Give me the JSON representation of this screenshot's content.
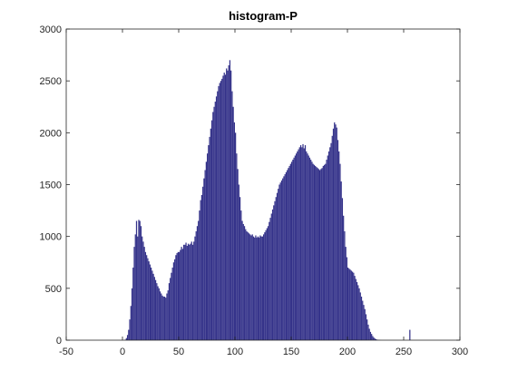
{
  "chart_data": {
    "type": "histogram",
    "title": "histogram-P",
    "bins": [
      0,
      1,
      2,
      3,
      4,
      5,
      6,
      7,
      8,
      9,
      10,
      11,
      12,
      13,
      14,
      15,
      16,
      17,
      18,
      19,
      20,
      21,
      22,
      23,
      24,
      25,
      26,
      27,
      28,
      29,
      30,
      31,
      32,
      33,
      34,
      35,
      36,
      37,
      38,
      39,
      40,
      41,
      42,
      43,
      44,
      45,
      46,
      47,
      48,
      49,
      50,
      51,
      52,
      53,
      54,
      55,
      56,
      57,
      58,
      59,
      60,
      61,
      62,
      63,
      64,
      65,
      66,
      67,
      68,
      69,
      70,
      71,
      72,
      73,
      74,
      75,
      76,
      77,
      78,
      79,
      80,
      81,
      82,
      83,
      84,
      85,
      86,
      87,
      88,
      89,
      90,
      91,
      92,
      93,
      94,
      95,
      96,
      97,
      98,
      99,
      100,
      101,
      102,
      103,
      104,
      105,
      106,
      107,
      108,
      109,
      110,
      111,
      112,
      113,
      114,
      115,
      116,
      117,
      118,
      119,
      120,
      121,
      122,
      123,
      124,
      125,
      126,
      127,
      128,
      129,
      130,
      131,
      132,
      133,
      134,
      135,
      136,
      137,
      138,
      139,
      140,
      141,
      142,
      143,
      144,
      145,
      146,
      147,
      148,
      149,
      150,
      151,
      152,
      153,
      154,
      155,
      156,
      157,
      158,
      159,
      160,
      161,
      162,
      163,
      164,
      165,
      166,
      167,
      168,
      169,
      170,
      171,
      172,
      173,
      174,
      175,
      176,
      177,
      178,
      179,
      180,
      181,
      182,
      183,
      184,
      185,
      186,
      187,
      188,
      189,
      190,
      191,
      192,
      193,
      194,
      195,
      196,
      197,
      198,
      199,
      200,
      201,
      202,
      203,
      204,
      205,
      206,
      207,
      208,
      209,
      210,
      211,
      212,
      213,
      214,
      215,
      216,
      217,
      218,
      219,
      220,
      221,
      222,
      223,
      224,
      225,
      226,
      227,
      228,
      229,
      230,
      231,
      232,
      233,
      234,
      235,
      236,
      237,
      238,
      239,
      240,
      241,
      242,
      243,
      244,
      245,
      246,
      247,
      248,
      249,
      250,
      251,
      252,
      253,
      254,
      255,
      256
    ],
    "values": [
      0,
      0,
      5,
      20,
      50,
      100,
      200,
      330,
      500,
      700,
      900,
      1020,
      1150,
      1000,
      1160,
      1150,
      1100,
      1000,
      950,
      900,
      850,
      820,
      790,
      760,
      730,
      700,
      670,
      640,
      610,
      580,
      550,
      520,
      500,
      470,
      450,
      430,
      420,
      420,
      410,
      450,
      480,
      550,
      600,
      650,
      700,
      750,
      780,
      820,
      840,
      850,
      850,
      870,
      900,
      880,
      920,
      920,
      940,
      910,
      930,
      920,
      930,
      950,
      920,
      950,
      1000,
      1050,
      1100,
      1150,
      1250,
      1350,
      1400,
      1480,
      1560,
      1640,
      1720,
      1800,
      1880,
      1960,
      2040,
      2120,
      2200,
      2250,
      2300,
      2350,
      2400,
      2450,
      2480,
      2500,
      2520,
      2550,
      2580,
      2560,
      2620,
      2600,
      2650,
      2700,
      2600,
      2400,
      2250,
      2100,
      2000,
      1800,
      1650,
      1500,
      1380,
      1250,
      1150,
      1120,
      1100,
      1070,
      1050,
      1040,
      1030,
      1020,
      1010,
      1020,
      1000,
      990,
      1010,
      990,
      1000,
      990,
      1010,
      1000,
      1000,
      1020,
      1040,
      1060,
      1080,
      1100,
      1140,
      1180,
      1220,
      1260,
      1300,
      1340,
      1380,
      1420,
      1460,
      1500,
      1520,
      1540,
      1560,
      1580,
      1600,
      1620,
      1640,
      1660,
      1680,
      1700,
      1720,
      1740,
      1760,
      1780,
      1800,
      1820,
      1840,
      1860,
      1880,
      1860,
      1890,
      1850,
      1880,
      1820,
      1800,
      1780,
      1760,
      1740,
      1720,
      1700,
      1690,
      1680,
      1670,
      1660,
      1650,
      1640,
      1650,
      1660,
      1680,
      1690,
      1700,
      1740,
      1780,
      1820,
      1860,
      1900,
      1970,
      2040,
      2100,
      2080,
      2050,
      1930,
      1820,
      1700,
      1530,
      1370,
      1200,
      1050,
      900,
      800,
      700,
      690,
      680,
      670,
      660,
      650,
      620,
      590,
      560,
      530,
      500,
      460,
      420,
      380,
      340,
      300,
      250,
      200,
      150,
      110,
      80,
      60,
      40,
      25,
      15,
      10,
      5,
      3,
      2,
      1,
      0,
      0,
      0,
      0,
      0,
      0,
      0,
      0,
      0,
      0,
      0,
      0,
      0,
      0,
      0,
      0,
      0,
      0,
      0,
      0,
      0,
      0,
      0,
      0,
      0,
      100
    ],
    "color": "#35338a",
    "xlim": [
      -50,
      300
    ],
    "xticks": [
      -50,
      0,
      50,
      100,
      150,
      200,
      250,
      300
    ],
    "ylim": [
      0,
      3000
    ],
    "yticks": [
      0,
      500,
      1000,
      1500,
      2000,
      2500,
      3000
    ]
  }
}
